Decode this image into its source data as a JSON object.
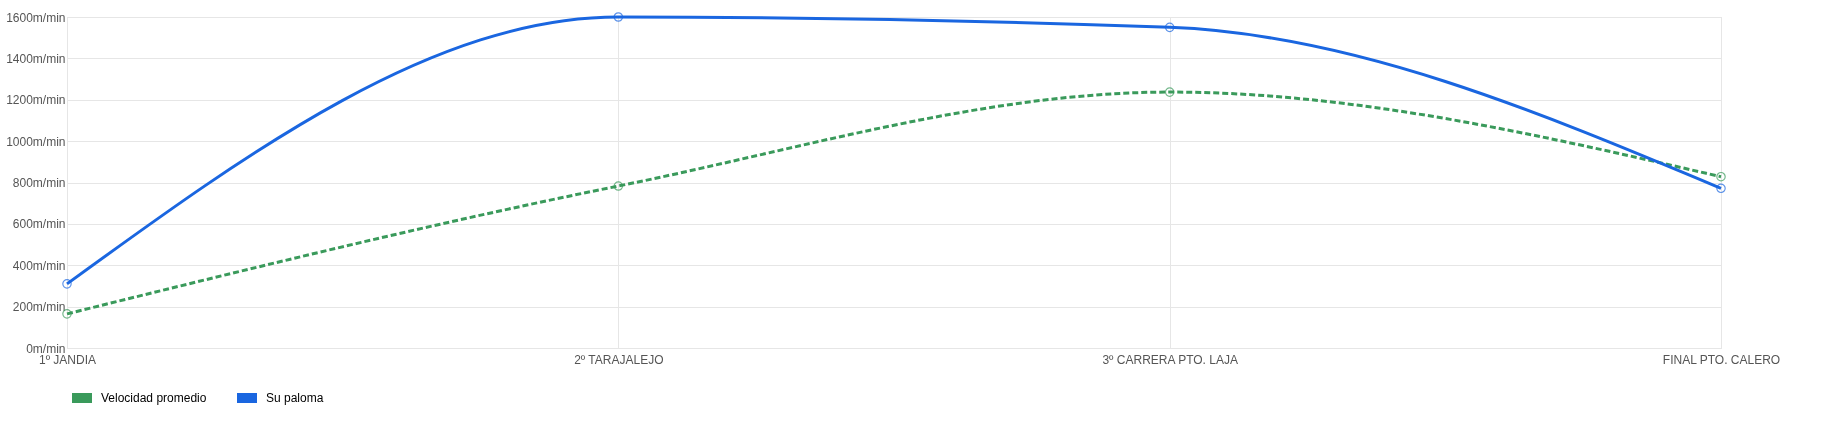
{
  "chart_data": {
    "type": "line",
    "categories": [
      "1º JANDIA",
      "2º  TARAJALEJO",
      "3º CARRERA PTO. LAJA",
      "FINAL PTO. CALERO"
    ],
    "series": [
      {
        "name": "Velocidad promedio",
        "color": "#3a9a5b",
        "line_style": "dashed",
        "values": [
          165,
          783,
          1237,
          828
        ]
      },
      {
        "name": "Su paloma",
        "color": "#1a66e0",
        "line_style": "solid",
        "values": [
          310,
          1600,
          1550,
          772
        ]
      }
    ],
    "ylim": [
      0,
      1600
    ],
    "yticks": [
      {
        "value": 0,
        "label": "0m/min"
      },
      {
        "value": 200,
        "label": "200m/min"
      },
      {
        "value": 400,
        "label": "400m/min"
      },
      {
        "value": 600,
        "label": "600m/min"
      },
      {
        "value": 800,
        "label": "800m/min"
      },
      {
        "value": 1000,
        "label": "1000m/min"
      },
      {
        "value": 1200,
        "label": "1200m/min"
      },
      {
        "value": 1400,
        "label": "1400m/min"
      },
      {
        "value": 1600,
        "label": "1600m/min"
      }
    ],
    "grid": true,
    "legend": "bottom",
    "marker": "circle"
  }
}
